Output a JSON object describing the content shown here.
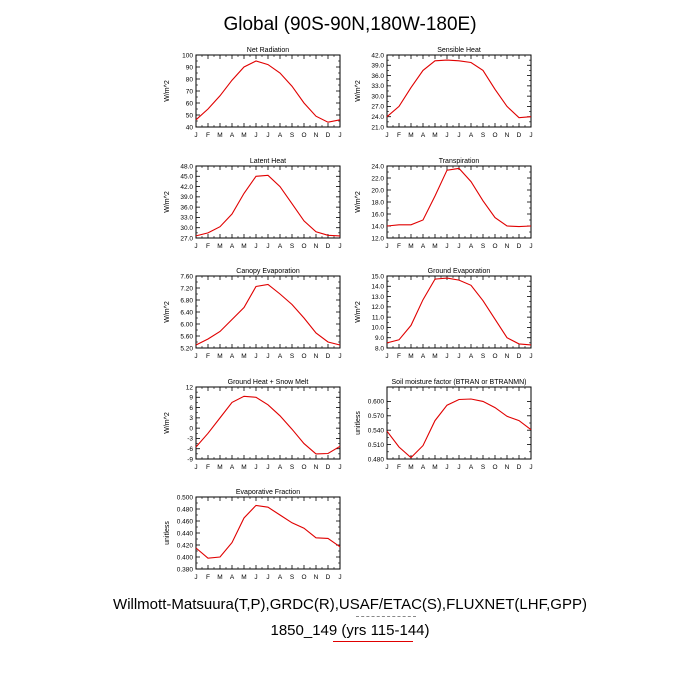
{
  "page": {
    "title": "Global (90S-90N,180W-180E)",
    "caption_line1": "Willmott-Matsuura(T,P),GRDC(R),USAF/ETAC(S),FLUXNET(LHF,GPP)",
    "caption_line2": "1850_149 (yrs 115-144)",
    "series_color": "#e00000"
  },
  "chart_data": [
    {
      "type": "line",
      "title": "Net Radiation",
      "ylabel": "W/m^2",
      "categories": [
        "J",
        "F",
        "M",
        "A",
        "M",
        "J",
        "J",
        "A",
        "S",
        "O",
        "N",
        "D",
        "J"
      ],
      "values": [
        46,
        55,
        66,
        79,
        90,
        95,
        92,
        85,
        74,
        60,
        49,
        44,
        46
      ],
      "ylim": [
        40,
        100
      ],
      "yticks": [
        "40",
        "50",
        "60",
        "70",
        "80",
        "90",
        "100"
      ]
    },
    {
      "type": "line",
      "title": "Sensible Heat",
      "ylabel": "W/m^2",
      "categories": [
        "J",
        "F",
        "M",
        "A",
        "M",
        "J",
        "J",
        "A",
        "S",
        "O",
        "N",
        "D",
        "J"
      ],
      "values": [
        24.0,
        27.0,
        32.5,
        37.5,
        40.3,
        40.5,
        40.3,
        39.8,
        37.5,
        32.0,
        27.0,
        23.7,
        24.0
      ],
      "ylim": [
        21.0,
        42.0
      ],
      "yticks": [
        "21.0",
        "24.0",
        "27.0",
        "30.0",
        "33.0",
        "36.0",
        "39.0",
        "42.0"
      ]
    },
    {
      "type": "line",
      "title": "Latent Heat",
      "ylabel": "W/m^2",
      "categories": [
        "J",
        "F",
        "M",
        "A",
        "M",
        "J",
        "J",
        "A",
        "S",
        "O",
        "N",
        "D",
        "J"
      ],
      "values": [
        27.6,
        28.5,
        30.3,
        34.0,
        40.0,
        45.0,
        45.3,
        42.0,
        37.0,
        32.0,
        28.8,
        27.8,
        27.6
      ],
      "ylim": [
        27.0,
        48.0
      ],
      "yticks": [
        "27.0",
        "30.0",
        "33.0",
        "36.0",
        "39.0",
        "42.0",
        "45.0",
        "48.0"
      ]
    },
    {
      "type": "line",
      "title": "Transpiration",
      "ylabel": "W/m^2",
      "categories": [
        "J",
        "F",
        "M",
        "A",
        "M",
        "J",
        "J",
        "A",
        "S",
        "O",
        "N",
        "D",
        "J"
      ],
      "values": [
        14.0,
        14.2,
        14.2,
        15.0,
        19.0,
        23.3,
        23.6,
        21.4,
        18.2,
        15.4,
        14.0,
        13.9,
        14.0
      ],
      "ylim": [
        12.0,
        24.0
      ],
      "yticks": [
        "12.0",
        "14.0",
        "16.0",
        "18.0",
        "20.0",
        "22.0",
        "24.0"
      ]
    },
    {
      "type": "line",
      "title": "Canopy Evaporation",
      "ylabel": "W/m^2",
      "categories": [
        "J",
        "F",
        "M",
        "A",
        "M",
        "J",
        "J",
        "A",
        "S",
        "O",
        "N",
        "D",
        "J"
      ],
      "values": [
        5.3,
        5.5,
        5.75,
        6.15,
        6.55,
        7.25,
        7.32,
        7.0,
        6.65,
        6.2,
        5.7,
        5.4,
        5.3
      ],
      "ylim": [
        5.2,
        7.6
      ],
      "yticks": [
        "5.20",
        "5.60",
        "6.00",
        "6.40",
        "6.80",
        "7.20",
        "7.60"
      ]
    },
    {
      "type": "line",
      "title": "Ground Evaporation",
      "ylabel": "W/m^2",
      "categories": [
        "J",
        "F",
        "M",
        "A",
        "M",
        "J",
        "J",
        "A",
        "S",
        "O",
        "N",
        "D",
        "J"
      ],
      "values": [
        8.5,
        8.8,
        10.2,
        12.7,
        14.7,
        14.8,
        14.6,
        14.1,
        12.6,
        10.8,
        9.0,
        8.4,
        8.3
      ],
      "ylim": [
        8.0,
        15.0
      ],
      "yticks": [
        "8.0",
        "9.0",
        "10.0",
        "11.0",
        "12.0",
        "13.0",
        "14.0",
        "15.0"
      ]
    },
    {
      "type": "line",
      "title": "Ground Heat + Snow Melt",
      "ylabel": "W/m^2",
      "categories": [
        "J",
        "F",
        "M",
        "A",
        "M",
        "J",
        "J",
        "A",
        "S",
        "O",
        "N",
        "D",
        "J"
      ],
      "values": [
        -5.5,
        -1.5,
        3.0,
        7.5,
        9.3,
        9.0,
        6.8,
        3.6,
        -0.3,
        -4.5,
        -7.5,
        -7.4,
        -5.3
      ],
      "ylim": [
        -9,
        12
      ],
      "yticks": [
        "-9",
        "-6",
        "-3",
        "0",
        "3",
        "6",
        "9",
        "12"
      ]
    },
    {
      "type": "line",
      "title": "Soil moisture factor (BTRAN or BTRANMN)",
      "ylabel": "unitless",
      "categories": [
        "J",
        "F",
        "M",
        "A",
        "M",
        "J",
        "J",
        "A",
        "S",
        "O",
        "N",
        "D",
        "J"
      ],
      "values": [
        0.538,
        0.505,
        0.483,
        0.508,
        0.56,
        0.592,
        0.604,
        0.605,
        0.6,
        0.587,
        0.569,
        0.56,
        0.541
      ],
      "ylim": [
        0.48,
        0.63
      ],
      "yticks": [
        "0.480",
        "0.510",
        "0.540",
        "0.570",
        "0.600"
      ]
    },
    {
      "type": "line",
      "title": "Evaporative Fraction",
      "ylabel": "unitless",
      "categories": [
        "J",
        "F",
        "M",
        "A",
        "M",
        "J",
        "J",
        "A",
        "S",
        "O",
        "N",
        "D",
        "J"
      ],
      "values": [
        0.415,
        0.398,
        0.4,
        0.424,
        0.465,
        0.486,
        0.483,
        0.47,
        0.457,
        0.448,
        0.432,
        0.431,
        0.417
      ],
      "ylim": [
        0.38,
        0.5
      ],
      "yticks": [
        "0.380",
        "0.400",
        "0.420",
        "0.440",
        "0.460",
        "0.480",
        "0.500"
      ]
    }
  ]
}
